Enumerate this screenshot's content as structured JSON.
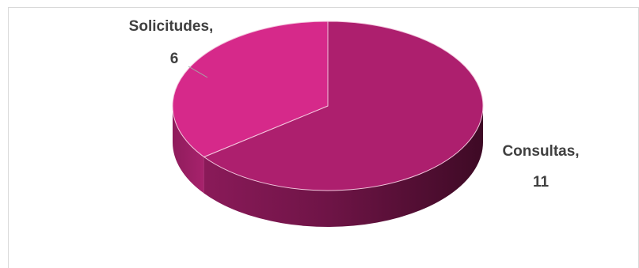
{
  "chart_data": {
    "type": "pie",
    "style": "3d",
    "categories": [
      "Consultas",
      "Solicitudes"
    ],
    "values": [
      11,
      6
    ],
    "labels": [
      {
        "line1": "Consultas,",
        "line2": "11"
      },
      {
        "line1": "Solicitudes,",
        "line2": "6"
      }
    ],
    "colors": {
      "consultas_top": "#ad1f6e",
      "consultas_side_light": "#8a1a59",
      "consultas_side_dark": "#3e0a25",
      "solicitudes_top": "#d6298a",
      "solicitudes_side": "#8f1c5c",
      "label_text": "#404040",
      "leader_line": "#a6a6a6"
    },
    "legend": "none",
    "title": ""
  }
}
